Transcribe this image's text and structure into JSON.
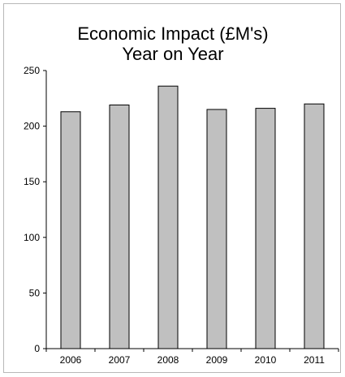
{
  "chart_data": {
    "type": "bar",
    "title_lines": [
      "Economic Impact (£M's)",
      "Year on Year"
    ],
    "categories": [
      "2006",
      "2007",
      "2008",
      "2009",
      "2010",
      "2011"
    ],
    "values": [
      213,
      219,
      236,
      215,
      216,
      220
    ],
    "ylim": [
      0,
      250
    ],
    "yticks": [
      0,
      50,
      100,
      150,
      200,
      250
    ],
    "xlabel": "",
    "ylabel": "",
    "grid": false,
    "legend": "none",
    "colors": {
      "bar_fill": "#c0c0c0",
      "bar_stroke": "#000000",
      "axis": "#000000",
      "frame": "#b8b8b8"
    }
  }
}
